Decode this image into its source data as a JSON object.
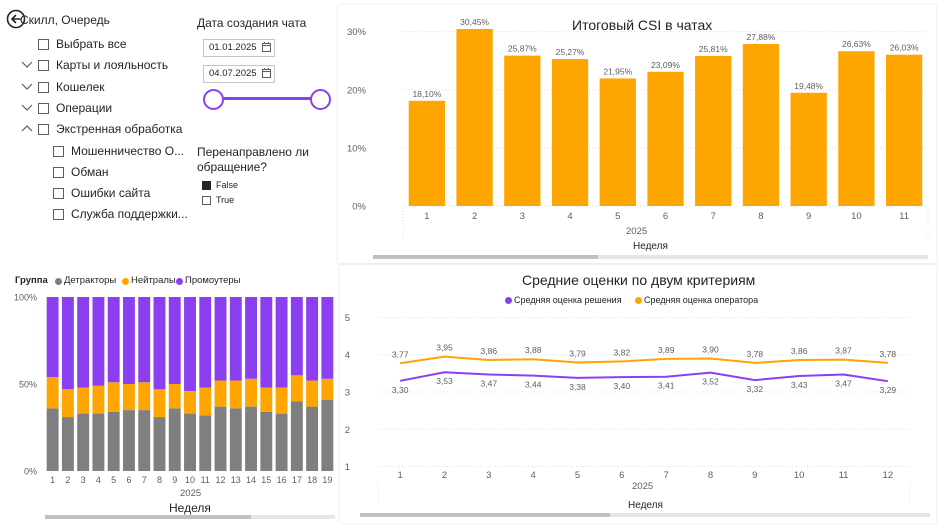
{
  "back_icon": "arrow-left-circle-icon",
  "slicer_queue": {
    "title": "Скилл, Очередь",
    "items": [
      {
        "label": "Выбрать все",
        "expander": "none",
        "indent": 0
      },
      {
        "label": "Карты и лояльность",
        "expander": "down",
        "indent": 0
      },
      {
        "label": "Кошелек",
        "expander": "down",
        "indent": 0
      },
      {
        "label": "Операции",
        "expander": "down",
        "indent": 0
      },
      {
        "label": "Экстренная обработка",
        "expander": "up",
        "indent": 0
      },
      {
        "label": "Мошенничество О...",
        "expander": "none",
        "indent": 1
      },
      {
        "label": "Обман",
        "expander": "none",
        "indent": 1
      },
      {
        "label": "Ошибки сайта",
        "expander": "none",
        "indent": 1
      },
      {
        "label": "Служба поддержки...",
        "expander": "none",
        "indent": 1
      }
    ]
  },
  "date_slicer": {
    "title": "Дата создания чата",
    "start": "01.01.2025",
    "end": "04.07.2025",
    "calendar_icon": "calendar-icon"
  },
  "redirect_slicer": {
    "title_line1": "Перенаправлено ли",
    "title_line2": "обращение?",
    "options": [
      {
        "label": "False",
        "checked": true
      },
      {
        "label": "True",
        "checked": false
      }
    ]
  },
  "colors": {
    "orange": "#FFA500",
    "purple": "#8B3FF0",
    "grey": "#7F7F7F"
  },
  "csi_chart": {
    "title": "Итоговый CSI в чатах",
    "xlabel": "Неделя",
    "year": "2025",
    "yticks": [
      "0%",
      "10%",
      "20%",
      "30%"
    ],
    "chart_data": {
      "type": "bar",
      "categories": [
        "1",
        "2",
        "3",
        "4",
        "5",
        "6",
        "7",
        "8",
        "9",
        "10",
        "11"
      ],
      "values": [
        18.1,
        30.45,
        25.87,
        25.27,
        21.95,
        23.09,
        25.81,
        27.88,
        19.48,
        26.63,
        26.03
      ],
      "labels": [
        "18,10%",
        "30,45%",
        "25,87%",
        "25,27%",
        "21,95%",
        "23,09%",
        "25,81%",
        "27,88%",
        "19,48%",
        "26,63%",
        "26,03%"
      ],
      "ylim": [
        0,
        32
      ],
      "color": "#FFA500"
    }
  },
  "group_chart": {
    "legend_title": "Группа",
    "legend": [
      "Детракторы",
      "Нейтралы",
      "Промоутеры"
    ],
    "xlabel": "Неделя",
    "year": "2025",
    "yticks": [
      "0%",
      "50%",
      "100%"
    ],
    "chart_data": {
      "type": "bar",
      "stacked": true,
      "categories": [
        "1",
        "2",
        "3",
        "4",
        "5",
        "6",
        "7",
        "8",
        "9",
        "10",
        "11",
        "12",
        "13",
        "14",
        "15",
        "16",
        "17",
        "18",
        "19"
      ],
      "series": [
        {
          "name": "Детракторы",
          "color": "#7F7F7F",
          "values": [
            36,
            31,
            33,
            33,
            34,
            35,
            35,
            31,
            36,
            33,
            32,
            37,
            36,
            37,
            34,
            33,
            40,
            37,
            41
          ]
        },
        {
          "name": "Нейтралы",
          "color": "#FFA500",
          "values": [
            18,
            16,
            15,
            16,
            17,
            15,
            16,
            16,
            14,
            13,
            16,
            15,
            16,
            16,
            14,
            15,
            15,
            15,
            12
          ]
        },
        {
          "name": "Промоутеры",
          "color": "#8B3FF0",
          "values": [
            46,
            53,
            52,
            51,
            49,
            50,
            49,
            53,
            50,
            54,
            52,
            48,
            48,
            47,
            52,
            52,
            45,
            48,
            47
          ]
        }
      ],
      "ylim": [
        0,
        100
      ]
    }
  },
  "scores_chart": {
    "title": "Средние оценки по двум критериям",
    "legend": [
      "Средняя оценка решения",
      "Средняя оценка оператора"
    ],
    "xlabel": "Неделя",
    "year": "2025",
    "yticks": [
      "1",
      "2",
      "3",
      "4",
      "5"
    ],
    "chart_data": {
      "type": "line",
      "categories": [
        "1",
        "2",
        "3",
        "4",
        "5",
        "6",
        "7",
        "8",
        "9",
        "10",
        "11",
        "12"
      ],
      "ylim": [
        0.8,
        5.2
      ],
      "series": [
        {
          "name": "Средняя оценка решения",
          "color": "#8B3FF0",
          "values": [
            3.3,
            3.53,
            3.47,
            3.44,
            3.38,
            3.4,
            3.41,
            3.52,
            3.32,
            3.43,
            3.47,
            3.29
          ],
          "labels": [
            "3,30",
            "3,53",
            "3,47",
            "3,44",
            "3,38",
            "3,40",
            "3,41",
            "3,52",
            "3,32",
            "3,43",
            "3,47",
            "3,29"
          ]
        },
        {
          "name": "Средняя оценка оператора",
          "color": "#FFA500",
          "values": [
            3.77,
            3.95,
            3.86,
            3.88,
            3.79,
            3.82,
            3.89,
            3.9,
            3.78,
            3.86,
            3.87,
            3.78
          ],
          "labels": [
            "3,77",
            "3,95",
            "3,86",
            "3,88",
            "3,79",
            "3,82",
            "3,89",
            "3,90",
            "3,78",
            "3,86",
            "3,87",
            "3,78"
          ]
        }
      ]
    }
  }
}
